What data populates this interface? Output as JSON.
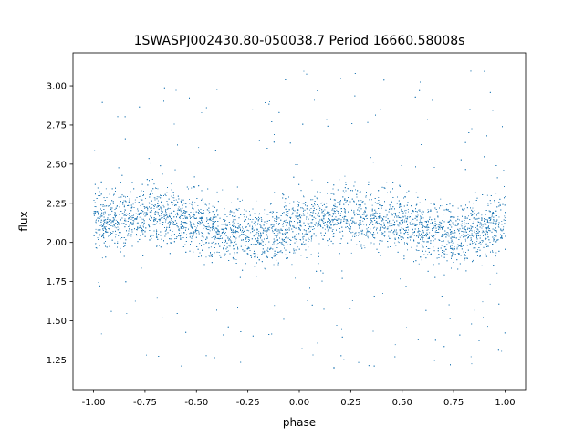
{
  "chart_data": {
    "type": "scatter",
    "title": "1SWASPJ002430.80-050038.7 Period 16660.58008s",
    "xlabel": "phase",
    "ylabel": "flux",
    "xlim": [
      -1.1,
      1.1
    ],
    "ylim": [
      1.06,
      3.21
    ],
    "xticks": [
      "-1.00",
      "-0.75",
      "-0.50",
      "-0.25",
      "0.00",
      "0.25",
      "0.50",
      "0.75",
      "1.00"
    ],
    "yticks": [
      "1.25",
      "1.50",
      "1.75",
      "2.00",
      "2.25",
      "2.50",
      "2.75",
      "3.00"
    ],
    "grid": false,
    "legend": "none",
    "marker_color": "#1f77b4",
    "phase_range": [
      -1.0,
      1.0
    ],
    "series": [
      {
        "model": "sinusoidal light curve with scatter",
        "x": [
          -1.0,
          -0.875,
          -0.75,
          -0.625,
          -0.5,
          -0.375,
          -0.25,
          -0.125,
          0.0,
          0.125,
          0.25,
          0.375,
          0.5,
          0.625,
          0.75,
          0.875,
          1.0
        ],
        "y": [
          2.12,
          2.16,
          2.18,
          2.16,
          2.12,
          2.07,
          2.05,
          2.07,
          2.12,
          2.16,
          2.18,
          2.16,
          2.12,
          2.07,
          2.05,
          2.07,
          2.12
        ],
        "core_spread": 0.09,
        "outlier_range": [
          1.18,
          3.1
        ]
      }
    ]
  }
}
